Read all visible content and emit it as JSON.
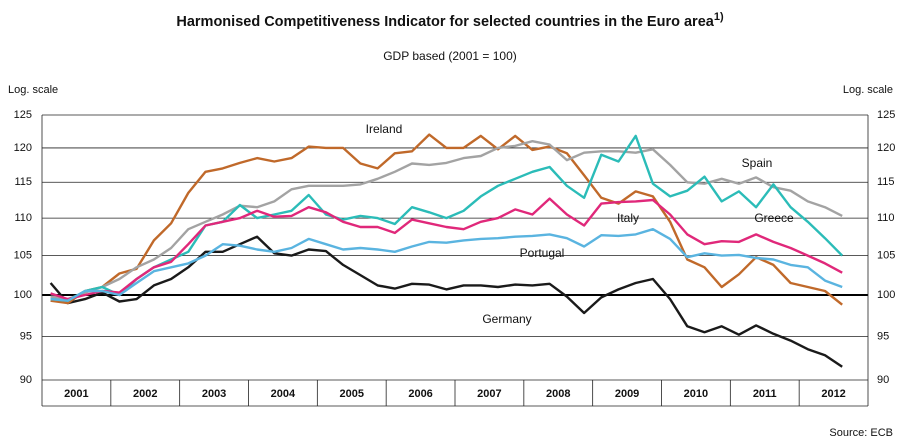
{
  "chart_data": {
    "type": "line",
    "title": "Harmonised Competitiveness Indicator for selected countries in the Euro area",
    "title_note": "1)",
    "subtitle": "GDP based (2001 = 100)",
    "y_label": "Log. scale",
    "y2_label": "Log. scale",
    "source": "Source: ECB",
    "log_scale": true,
    "grid": true,
    "reference_line": 100,
    "ylim": [
      90,
      125
    ],
    "yticks": [
      90,
      95,
      100,
      105,
      110,
      115,
      120,
      125
    ],
    "xlim": [
      2001,
      2013
    ],
    "xticks": [
      {
        "value": 2001.5,
        "label": "2001"
      },
      {
        "value": 2002.5,
        "label": "2002"
      },
      {
        "value": 2003.5,
        "label": "2003"
      },
      {
        "value": 2004.5,
        "label": "2004"
      },
      {
        "value": 2005.5,
        "label": "2005"
      },
      {
        "value": 2006.5,
        "label": "2006"
      },
      {
        "value": 2007.5,
        "label": "2007"
      },
      {
        "value": 2008.5,
        "label": "2008"
      },
      {
        "value": 2009.5,
        "label": "2009"
      },
      {
        "value": 2010.5,
        "label": "2010"
      },
      {
        "value": 2011.5,
        "label": "2011"
      },
      {
        "value": 2012.5,
        "label": "2012"
      }
    ],
    "x": [
      2001.125,
      2001.375,
      2001.625,
      2001.875,
      2002.125,
      2002.375,
      2002.625,
      2002.875,
      2003.125,
      2003.375,
      2003.625,
      2003.875,
      2004.125,
      2004.375,
      2004.625,
      2004.875,
      2005.125,
      2005.375,
      2005.625,
      2005.875,
      2006.125,
      2006.375,
      2006.625,
      2006.875,
      2007.125,
      2007.375,
      2007.625,
      2007.875,
      2008.125,
      2008.375,
      2008.625,
      2008.875,
      2009.125,
      2009.375,
      2009.625,
      2009.875,
      2010.125,
      2010.375,
      2010.625,
      2010.875,
      2011.125,
      2011.375,
      2011.625,
      2011.875,
      2012.125,
      2012.375,
      2012.625
    ],
    "series": [
      {
        "name": "Germany",
        "color": "#1a1a1a",
        "values": [
          101.5,
          99,
          99.5,
          100.3,
          99.2,
          99.5,
          101.2,
          102,
          103.5,
          105.5,
          105.5,
          106.5,
          107.5,
          105.3,
          105,
          105.8,
          105.6,
          103.8,
          102.5,
          101.2,
          100.8,
          101.4,
          101.3,
          100.7,
          101.2,
          101.2,
          101,
          101.3,
          101.2,
          101.4,
          99.8,
          97.8,
          99.7,
          100.7,
          101.5,
          102,
          99.5,
          96.2,
          95.5,
          96.2,
          95.2,
          96.3,
          95.3,
          94.5,
          93.5,
          92.8,
          91.5
        ]
      },
      {
        "name": "Ireland",
        "color": "#c0692a",
        "values": [
          99.3,
          99,
          100.5,
          101,
          102.7,
          103.3,
          107,
          109.3,
          113.5,
          116.5,
          117,
          117.8,
          118.5,
          118,
          118.5,
          120.2,
          120,
          120,
          117.7,
          117,
          119.2,
          119.5,
          122,
          120,
          120,
          121.8,
          119.8,
          121.8,
          119.7,
          120.2,
          119.2,
          116,
          112.8,
          112,
          113.7,
          113,
          109.5,
          104.5,
          103.5,
          101,
          102.6,
          104.8,
          103.8,
          101.5,
          101,
          100.5,
          98.8
        ]
      },
      {
        "name": "Spain",
        "color": "#a3a3a3",
        "values": [
          99.8,
          99.5,
          100.3,
          101,
          102,
          103.5,
          104.5,
          106,
          108.5,
          109.5,
          110.5,
          111.7,
          111.5,
          112.3,
          114,
          114.5,
          114.5,
          114.5,
          114.7,
          115.5,
          116.5,
          117.7,
          117.5,
          117.8,
          118.5,
          118.8,
          120,
          120.3,
          121,
          120.5,
          118.2,
          119.3,
          119.5,
          119.5,
          119.3,
          119.8,
          117.5,
          115,
          114.8,
          115.5,
          114.8,
          115.7,
          114.3,
          113.8,
          112.3,
          111.5,
          110.3
        ]
      },
      {
        "name": "Greece",
        "color": "#2bbcb8",
        "values": [
          99.5,
          99.3,
          100.5,
          101,
          100,
          102,
          103.5,
          104.5,
          105.5,
          109,
          109.5,
          111.8,
          110,
          110.5,
          111,
          113.2,
          110.5,
          109.8,
          110.3,
          110,
          109.2,
          111.5,
          110.8,
          110,
          111,
          113,
          114.5,
          115.5,
          116.5,
          117.2,
          114.5,
          112.8,
          119,
          118,
          121.8,
          114.8,
          113,
          113.8,
          115.8,
          112.3,
          113.7,
          111.5,
          114.7,
          111.5,
          109.5,
          107.3,
          105
        ]
      },
      {
        "name": "Italy",
        "color": "#e0287a",
        "values": [
          100.2,
          99.5,
          100,
          100.5,
          100.3,
          102,
          103.5,
          104.2,
          106.5,
          109,
          109.5,
          110,
          111,
          110.2,
          110.3,
          111.5,
          110.8,
          109.5,
          108.8,
          108.8,
          108,
          109.8,
          109.3,
          108.8,
          108.5,
          109.5,
          110,
          111.2,
          110.5,
          112.7,
          110.5,
          109,
          112,
          112.2,
          112.3,
          112.5,
          110.5,
          107.8,
          106.5,
          106.9,
          106.8,
          107.8,
          106.8,
          106,
          105,
          104,
          102.8
        ]
      },
      {
        "name": "Portugal",
        "color": "#5ab4e0",
        "values": [
          99.5,
          99.3,
          100.5,
          100.5,
          100,
          101.5,
          103,
          103.5,
          104,
          105,
          106.5,
          106.3,
          105.8,
          105.5,
          106,
          107.2,
          106.5,
          105.8,
          106,
          105.8,
          105.5,
          106.2,
          106.8,
          106.7,
          107,
          107.2,
          107.3,
          107.5,
          107.6,
          107.8,
          107.3,
          106.2,
          107.7,
          107.6,
          107.8,
          108.5,
          107.2,
          104.8,
          105.3,
          105,
          105.1,
          104.7,
          104.5,
          103.8,
          103.5,
          101.8,
          101
        ]
      }
    ]
  }
}
